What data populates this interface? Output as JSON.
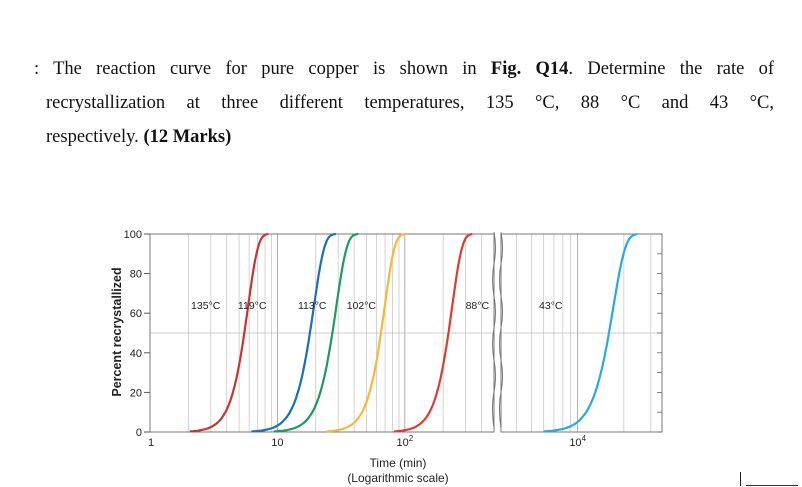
{
  "question": {
    "prefix": ": The reaction curve for pure copper is shown in",
    "fig_ref": "Fig. Q14",
    "line1_rest": ". Determine the rate of",
    "line2": "recrystallization at three different temperatures, 135 °C, 88 °C and 43 °C,",
    "line3_pre": "respectively.",
    "marks": "(12 Marks)"
  },
  "chart_data": {
    "type": "line",
    "title": "",
    "xlabel": "Time (min)",
    "xlabel_sub": "(Logarithmic scale)",
    "ylabel": "Percent recrystallized",
    "x_scale": "log",
    "x_ticks": [
      {
        "value": 1,
        "label": "1",
        "exp": ""
      },
      {
        "value": 10,
        "label": "10",
        "exp": ""
      },
      {
        "value": 100,
        "label": "10",
        "exp": "2"
      },
      {
        "value": 10000,
        "label": "10",
        "exp": "4"
      }
    ],
    "y_ticks": [
      0,
      20,
      40,
      60,
      80,
      100
    ],
    "ylim": [
      0,
      100
    ],
    "axis_break": "between 10^3 and 10^4",
    "grid": true,
    "series": [
      {
        "name": "135°C",
        "color": "#c8342f",
        "t50": 5.5,
        "n": 5.5
      },
      {
        "name": "119°C",
        "color": "#1a6fb8",
        "t50": 18,
        "n": 5.2
      },
      {
        "name": "113°C",
        "color": "#1e9a62",
        "t50": 27,
        "n": 5.2
      },
      {
        "name": "102°C",
        "color": "#f4b83a",
        "t50": 65,
        "n": 5.5
      },
      {
        "name": "88°C",
        "color": "#df3b34",
        "t50": 220,
        "n": 5.5
      },
      {
        "name": "43°C",
        "color": "#27aae1",
        "t50": 16000,
        "n": 5.5
      }
    ]
  }
}
